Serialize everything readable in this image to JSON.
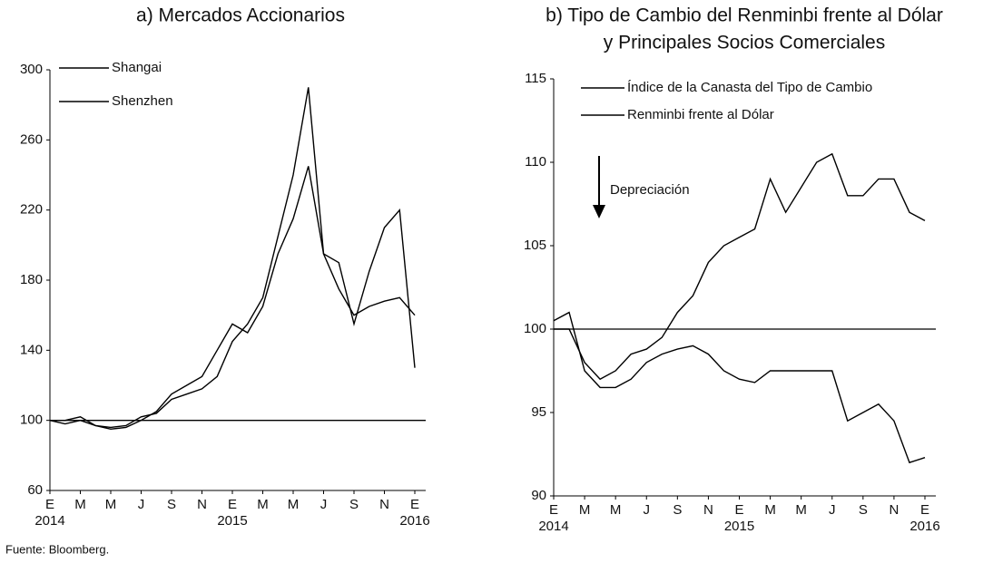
{
  "chart_data": [
    {
      "type": "line",
      "title_lines": [
        "a) Mercados Accionarios"
      ],
      "x": [
        "2014-01",
        "2014-02",
        "2014-03",
        "2014-04",
        "2014-05",
        "2014-06",
        "2014-07",
        "2014-08",
        "2014-09",
        "2014-10",
        "2014-11",
        "2014-12",
        "2015-01",
        "2015-02",
        "2015-03",
        "2015-04",
        "2015-05",
        "2015-06",
        "2015-07",
        "2015-08",
        "2015-09",
        "2015-10",
        "2015-11",
        "2015-12",
        "2016-01"
      ],
      "series": [
        {
          "name": "Shangai",
          "color": "#000000",
          "values": [
            100,
            98,
            100,
            97,
            95,
            96,
            100,
            105,
            115,
            120,
            125,
            140,
            155,
            150,
            165,
            195,
            215,
            245,
            195,
            175,
            160,
            165,
            168,
            170,
            160
          ]
        },
        {
          "name": "Shenzhen",
          "color": "#000000",
          "values": [
            100,
            100,
            102,
            97,
            96,
            97,
            102,
            104,
            112,
            115,
            118,
            125,
            145,
            155,
            170,
            205,
            240,
            290,
            195,
            190,
            155,
            185,
            210,
            220,
            130
          ]
        }
      ],
      "xlim": [
        "2014-01",
        "2016-01"
      ],
      "xticks": [
        {
          "value": "2014-01",
          "label": "E"
        },
        {
          "value": "2014-03",
          "label": "M"
        },
        {
          "value": "2014-05",
          "label": "M"
        },
        {
          "value": "2014-07",
          "label": "J"
        },
        {
          "value": "2014-09",
          "label": "S"
        },
        {
          "value": "2014-11",
          "label": "N"
        },
        {
          "value": "2015-01",
          "label": "E"
        },
        {
          "value": "2015-03",
          "label": "M"
        },
        {
          "value": "2015-05",
          "label": "M"
        },
        {
          "value": "2015-07",
          "label": "J"
        },
        {
          "value": "2015-09",
          "label": "S"
        },
        {
          "value": "2015-11",
          "label": "N"
        },
        {
          "value": "2016-01",
          "label": "E"
        }
      ],
      "year_ticks": [
        {
          "value": "2014-01",
          "label": "2014"
        },
        {
          "value": "2015-01",
          "label": "2015"
        },
        {
          "value": "2016-01",
          "label": "2016"
        }
      ],
      "ylim": [
        60,
        300
      ],
      "yticks": [
        60,
        100,
        140,
        180,
        220,
        260,
        300
      ],
      "reference": 100,
      "legend": "upper left"
    },
    {
      "type": "line",
      "title_lines": [
        "b) Tipo de Cambio del Renminbi frente al Dólar",
        "y Principales Socios Comerciales"
      ],
      "x": [
        "2014-01",
        "2014-02",
        "2014-03",
        "2014-04",
        "2014-05",
        "2014-06",
        "2014-07",
        "2014-08",
        "2014-09",
        "2014-10",
        "2014-11",
        "2014-12",
        "2015-01",
        "2015-02",
        "2015-03",
        "2015-04",
        "2015-05",
        "2015-06",
        "2015-07",
        "2015-08",
        "2015-09",
        "2015-10",
        "2015-11",
        "2015-12",
        "2016-01"
      ],
      "series": [
        {
          "name": "Índice de la Canasta del Tipo de Cambio",
          "color": "#000000",
          "values": [
            100,
            100,
            98,
            97,
            97.5,
            98.5,
            98.8,
            99.5,
            101,
            102,
            104,
            105,
            105.5,
            106,
            109,
            107,
            108.5,
            110,
            110.5,
            108,
            108,
            109,
            109,
            107,
            106.5
          ]
        },
        {
          "name": "Renminbi frente al Dólar",
          "color": "#000000",
          "values": [
            100.5,
            101,
            97.5,
            96.5,
            96.5,
            97,
            98,
            98.5,
            98.8,
            99,
            98.5,
            97.5,
            97,
            96.8,
            97.5,
            97.5,
            97.5,
            97.5,
            97.5,
            94.5,
            95,
            95.5,
            94.5,
            92,
            92.3
          ]
        }
      ],
      "xlim": [
        "2014-01",
        "2016-01"
      ],
      "xticks": [
        {
          "value": "2014-01",
          "label": "E"
        },
        {
          "value": "2014-03",
          "label": "M"
        },
        {
          "value": "2014-05",
          "label": "M"
        },
        {
          "value": "2014-07",
          "label": "J"
        },
        {
          "value": "2014-09",
          "label": "S"
        },
        {
          "value": "2014-11",
          "label": "N"
        },
        {
          "value": "2015-01",
          "label": "E"
        },
        {
          "value": "2015-03",
          "label": "M"
        },
        {
          "value": "2015-05",
          "label": "M"
        },
        {
          "value": "2015-07",
          "label": "J"
        },
        {
          "value": "2015-09",
          "label": "S"
        },
        {
          "value": "2015-11",
          "label": "N"
        },
        {
          "value": "2016-01",
          "label": "E"
        }
      ],
      "year_ticks": [
        {
          "value": "2014-01",
          "label": "2014"
        },
        {
          "value": "2015-01",
          "label": "2015"
        },
        {
          "value": "2016-01",
          "label": "2016"
        }
      ],
      "ylim": [
        90,
        115
      ],
      "yticks": [
        90,
        95,
        100,
        105,
        110,
        115
      ],
      "reference": 100,
      "legend": "upper left",
      "annotation": "Depreciación"
    }
  ],
  "source": "Fuente: Bloomberg."
}
